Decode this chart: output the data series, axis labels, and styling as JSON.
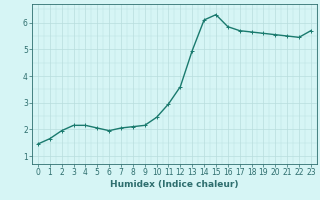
{
  "x": [
    0,
    1,
    2,
    3,
    4,
    5,
    6,
    7,
    8,
    9,
    10,
    11,
    12,
    13,
    14,
    15,
    16,
    17,
    18,
    19,
    20,
    21,
    22,
    23
  ],
  "y": [
    1.45,
    1.65,
    1.95,
    2.15,
    2.15,
    2.05,
    1.95,
    2.05,
    2.1,
    2.15,
    2.45,
    2.95,
    3.6,
    4.95,
    6.1,
    6.3,
    5.85,
    5.7,
    5.65,
    5.6,
    5.55,
    5.5,
    5.45,
    5.7
  ],
  "line_color": "#1a7a6e",
  "marker_color": "#1a7a6e",
  "bg_color": "#d6f5f5",
  "grid_color": "#b8dede",
  "axis_color": "#2e6e6e",
  "xlabel": "Humidex (Indice chaleur)",
  "ylim": [
    0.7,
    6.7
  ],
  "xlim": [
    -0.5,
    23.5
  ],
  "yticks": [
    1,
    2,
    3,
    4,
    5,
    6
  ],
  "xticks": [
    0,
    1,
    2,
    3,
    4,
    5,
    6,
    7,
    8,
    9,
    10,
    11,
    12,
    13,
    14,
    15,
    16,
    17,
    18,
    19,
    20,
    21,
    22,
    23
  ],
  "xlabel_fontsize": 6.5,
  "tick_fontsize": 5.5,
  "line_width": 1.0,
  "marker_size": 2.5
}
